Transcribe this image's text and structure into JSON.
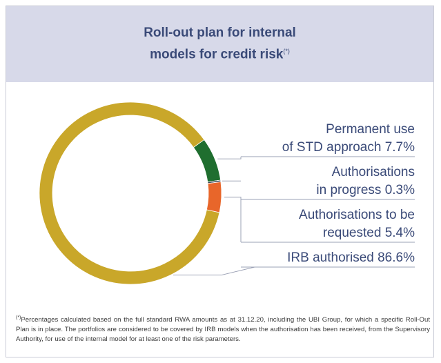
{
  "header": {
    "title_line1": "Roll-out plan for internal",
    "title_line2": "models for credit risk",
    "title_marker": "(*)"
  },
  "colors": {
    "header_bg": "#d7d9e9",
    "title": "#3a4a78",
    "irb_authorised": "#c9a72a",
    "permanent_std": "#1f6e2f",
    "in_progress": "#3b4654",
    "to_be_requested": "#e8662a",
    "leader_lines": "#9aa0b4"
  },
  "chart_data": {
    "type": "pie",
    "donut": true,
    "unit": "%",
    "slices": [
      {
        "name": "Permanent use of STD approach",
        "value": 7.7,
        "label_lines": [
          "Permanent use",
          "of STD approach 7.7%"
        ],
        "color": "#1f6e2f"
      },
      {
        "name": "Authorisations in progress",
        "value": 0.3,
        "label_lines": [
          "Authorisations",
          "in progress 0.3%"
        ],
        "color": "#3b4654"
      },
      {
        "name": "Authorisations to be requested",
        "value": 5.4,
        "label_lines": [
          "Authorisations to be",
          "requested 5.4%"
        ],
        "color": "#e8662a"
      },
      {
        "name": "IRB authorised",
        "value": 86.6,
        "label_lines": [
          "IRB authorised 86.6%"
        ],
        "color": "#c9a72a"
      }
    ]
  },
  "footnote": {
    "marker": "(*)",
    "text": "Percentages calculated based on the full standard RWA amounts as at 31.12.20, including the UBI Group, for which a specific Roll-Out Plan is in place. The portfolios are considered to be covered by IRB models when the authorisation has been received, from the Supervisory Authority, for use of the internal model for at least one of the risk parameters."
  }
}
